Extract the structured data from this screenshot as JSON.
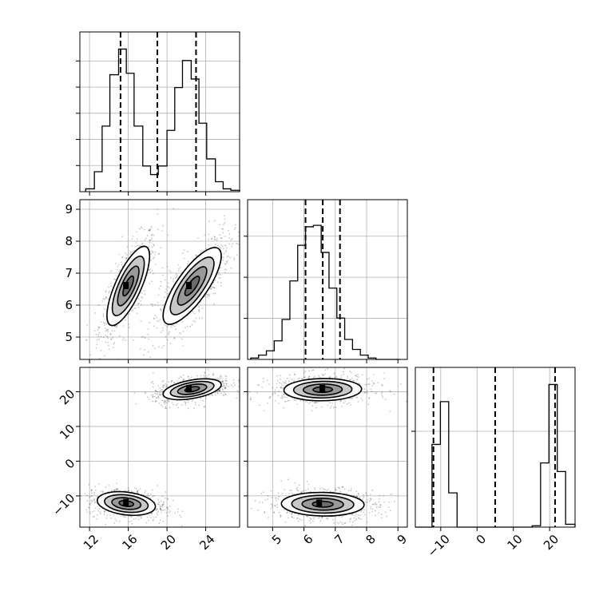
{
  "figure": {
    "kind": "corner-plot",
    "colors": {
      "frame": "#000000",
      "grid": "#b0b0b0",
      "points": "#000000",
      "contour_fill": "#4d4d4d",
      "background": "#ffffff"
    }
  },
  "chart_data": [
    {
      "type": "histogram",
      "panel": "hist-param1",
      "grid": true,
      "xlim": [
        11,
        27.5
      ],
      "ylim": [
        0,
        1.0
      ],
      "bin_edges": [
        11.6,
        12.5,
        13.3,
        14.1,
        15.0,
        15.8,
        16.6,
        17.5,
        18.3,
        19.1,
        20.0,
        20.8,
        21.6,
        22.5,
        23.3,
        24.1,
        25.0,
        25.8,
        26.6,
        27.5
      ],
      "counts": [
        0.02,
        0.14,
        0.46,
        0.82,
        1.0,
        0.83,
        0.46,
        0.18,
        0.12,
        0.18,
        0.43,
        0.73,
        0.92,
        0.79,
        0.48,
        0.23,
        0.07,
        0.02,
        0.01
      ],
      "quantiles": [
        15.2,
        19.0,
        23.0
      ],
      "y_ticks_count": 6,
      "x_ticks": [
        "12",
        "16",
        "20",
        "24"
      ]
    },
    {
      "type": "histogram",
      "panel": "hist-param2",
      "grid": true,
      "xlim": [
        4.2,
        9.3
      ],
      "ylim": [
        0,
        1.0
      ],
      "bin_edges": [
        4.3,
        4.55,
        4.8,
        5.05,
        5.3,
        5.55,
        5.8,
        6.05,
        6.3,
        6.55,
        6.8,
        7.05,
        7.3,
        7.55,
        7.8,
        8.05,
        8.3,
        8.55,
        8.8,
        9.05
      ],
      "counts": [
        0.01,
        0.03,
        0.06,
        0.13,
        0.28,
        0.55,
        0.8,
        0.93,
        0.94,
        0.75,
        0.5,
        0.29,
        0.14,
        0.07,
        0.03,
        0.01,
        0.0,
        0.0,
        0.0
      ],
      "quantiles": [
        6.05,
        6.6,
        7.15
      ],
      "y_ticks_count": 4,
      "x_ticks": [
        "5",
        "6",
        "7",
        "8",
        "9"
      ]
    },
    {
      "type": "histogram",
      "panel": "hist-param3",
      "grid": true,
      "xlim": [
        -17,
        27
      ],
      "ylim": [
        0,
        1.0
      ],
      "bin_edges": [
        -17,
        -14.7,
        -12.4,
        -10.1,
        -7.8,
        -5.5,
        -3.2,
        -0.9,
        1.4,
        3.7,
        6.0,
        8.3,
        10.6,
        12.9,
        15.2,
        17.5,
        19.8,
        22.1,
        24.4,
        27.0
      ],
      "counts": [
        0.0,
        0.0,
        0.58,
        0.88,
        0.24,
        0.0,
        0.0,
        0.0,
        0.0,
        0.0,
        0.0,
        0.0,
        0.0,
        0.0,
        0.01,
        0.45,
        1.0,
        0.39,
        0.02
      ],
      "quantiles": [
        -12.0,
        5.0,
        21.5
      ],
      "y_ticks_count": 2,
      "x_ticks": [
        "−10",
        "0",
        "10",
        "20"
      ]
    },
    {
      "type": "scatter",
      "panel": "joint-param1-param2",
      "grid": true,
      "xlim": [
        11,
        27.5
      ],
      "ylim": [
        4.3,
        9.3
      ],
      "clusters": [
        {
          "center": [
            16.0,
            6.6
          ],
          "spread": [
            1.1,
            0.62
          ],
          "correlation": 0.75,
          "density_peak": [
            15.8,
            6.6
          ],
          "contour_sigmas": [
            0.5,
            1.0,
            1.5,
            2.0
          ]
        },
        {
          "center": [
            22.6,
            6.6
          ],
          "spread": [
            1.5,
            0.6
          ],
          "correlation": 0.78,
          "density_peak": [
            22.3,
            6.6
          ],
          "contour_sigmas": [
            0.5,
            1.0,
            1.5,
            2.0
          ]
        }
      ],
      "y_ticks": [
        "5",
        "6",
        "7",
        "8",
        "9"
      ]
    },
    {
      "type": "scatter",
      "panel": "joint-param1-param3",
      "grid": true,
      "xlim": [
        11,
        27.5
      ],
      "ylim": [
        -19,
        27
      ],
      "clusters": [
        {
          "center": [
            15.8,
            -12.2
          ],
          "spread": [
            1.5,
            1.7
          ],
          "correlation": -0.25,
          "density_peak": [
            15.8,
            -12.0
          ],
          "contour_sigmas": [
            0.5,
            1.0,
            1.5,
            2.0
          ]
        },
        {
          "center": [
            22.6,
            20.7
          ],
          "spread": [
            1.5,
            1.5
          ],
          "correlation": 0.45,
          "density_peak": [
            22.3,
            20.8
          ],
          "contour_sigmas": [
            0.5,
            1.0,
            1.5,
            2.0
          ]
        }
      ],
      "y_ticks": [
        "−10",
        "0",
        "10",
        "20"
      ]
    },
    {
      "type": "scatter",
      "panel": "joint-param2-param3",
      "grid": true,
      "xlim": [
        4.2,
        9.3
      ],
      "ylim": [
        -19,
        27
      ],
      "clusters": [
        {
          "center": [
            6.6,
            20.6
          ],
          "spread": [
            0.62,
            1.6
          ],
          "correlation": 0.05,
          "density_peak": [
            6.6,
            20.8
          ],
          "contour_sigmas": [
            0.5,
            1.0,
            1.5,
            2.0
          ]
        },
        {
          "center": [
            6.6,
            -12.4
          ],
          "spread": [
            0.66,
            1.7
          ],
          "correlation": -0.05,
          "density_peak": [
            6.5,
            -12.2
          ],
          "contour_sigmas": [
            0.5,
            1.0,
            1.5,
            2.0
          ]
        }
      ]
    }
  ]
}
